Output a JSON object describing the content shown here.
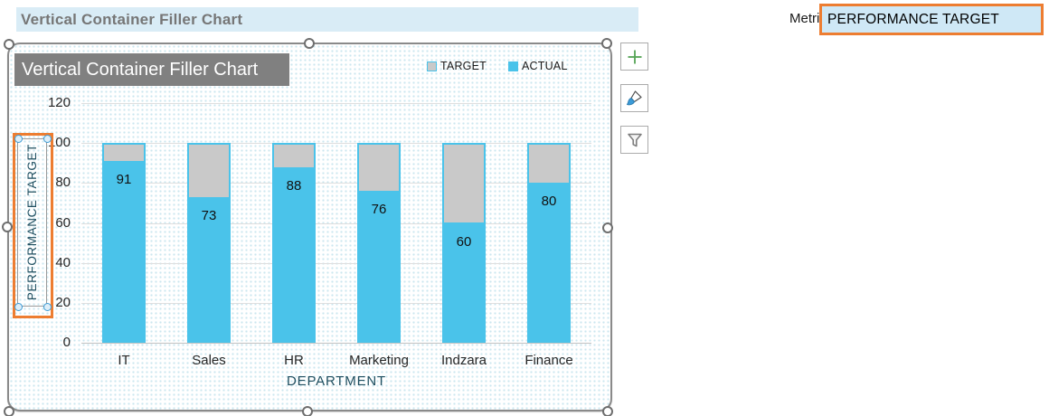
{
  "banner": {
    "title": "Vertical Container Filler Chart"
  },
  "metric": {
    "label": "Metric",
    "value": "PERFORMANCE TARGET"
  },
  "chart": {
    "title": "Vertical Container Filler Chart",
    "legend": [
      {
        "label": "TARGET",
        "color": "#C9C9C9",
        "border": "#4AC3EA"
      },
      {
        "label": "ACTUAL",
        "color": "#4AC3EA",
        "border": "#4AC3EA"
      }
    ]
  },
  "chart_data": {
    "type": "bar",
    "stacked": true,
    "title": "Vertical Container Filler Chart",
    "categories": [
      "IT",
      "Sales",
      "HR",
      "Marketing",
      "Indzara",
      "Finance"
    ],
    "series": [
      {
        "name": "ACTUAL",
        "values": [
          91,
          73,
          88,
          76,
          60,
          80
        ],
        "color": "#4AC3EA"
      },
      {
        "name": "TARGET",
        "values": [
          9,
          27,
          12,
          24,
          40,
          20
        ],
        "color": "#C9C9C9"
      }
    ],
    "container_total": 100,
    "xlabel": "DEPARTMENT",
    "ylabel": "PERFORMANCE TARGET",
    "ylim": [
      0,
      120
    ],
    "yticks": [
      0,
      20,
      40,
      60,
      80,
      100,
      120
    ],
    "grid": true,
    "legend_position": "top-right"
  },
  "toolbar": {
    "buttons": [
      {
        "name": "Chart Elements",
        "icon": "plus-icon"
      },
      {
        "name": "Chart Styles",
        "icon": "brush-icon"
      },
      {
        "name": "Chart Filters",
        "icon": "funnel-icon"
      }
    ]
  },
  "colors": {
    "actual_blue": "#4AC3EA",
    "target_gray": "#C9C9C9",
    "selection_orange": "#ED7D31",
    "banner_bg": "#D9ECF6",
    "metric_bg": "#CFE8F6",
    "chart_title_bg": "#808080",
    "axis_title_text": "#1F4E5F"
  }
}
